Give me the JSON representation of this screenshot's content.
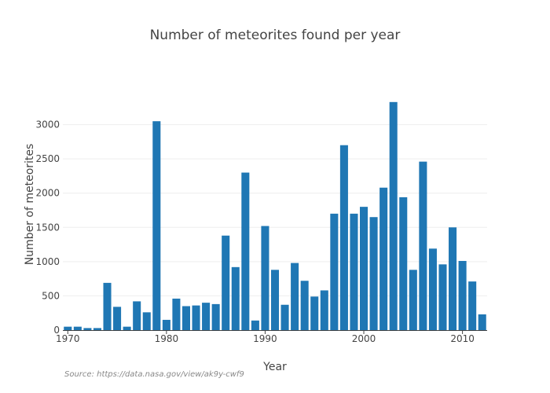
{
  "colors": {
    "bar": "#1f77b4",
    "grid": "#eeeeee",
    "axis": "#444444",
    "text": "#444444",
    "source": "#888888"
  },
  "chart_data": {
    "type": "bar",
    "title": "Number of meteorites found per year",
    "xlabel": "Year",
    "ylabel": "Number of meteorites",
    "source": "Source: https://data.nasa.gov/view/ak9y-cwf9",
    "x": [
      1970,
      1971,
      1972,
      1973,
      1974,
      1975,
      1976,
      1977,
      1978,
      1979,
      1980,
      1981,
      1982,
      1983,
      1984,
      1985,
      1986,
      1987,
      1988,
      1989,
      1990,
      1991,
      1992,
      1993,
      1994,
      1995,
      1996,
      1997,
      1998,
      1999,
      2000,
      2001,
      2002,
      2003,
      2004,
      2005,
      2006,
      2007,
      2008,
      2009,
      2010,
      2011,
      2012
    ],
    "values": [
      50,
      50,
      30,
      30,
      690,
      340,
      50,
      420,
      260,
      3050,
      150,
      460,
      350,
      360,
      400,
      380,
      1380,
      920,
      2300,
      140,
      1520,
      880,
      370,
      980,
      720,
      490,
      580,
      1700,
      2700,
      1700,
      1800,
      1650,
      2080,
      3330,
      1940,
      880,
      2460,
      1190,
      960,
      1500,
      1010,
      710,
      230
    ],
    "xticks": [
      1970,
      1980,
      1990,
      2000,
      2010
    ],
    "yticks": [
      0,
      500,
      1000,
      1500,
      2000,
      2500,
      3000
    ],
    "xlim": [
      1969.5,
      2012.5
    ],
    "ylim": [
      0,
      3500
    ],
    "grid": "horizontal",
    "legend": "none"
  }
}
